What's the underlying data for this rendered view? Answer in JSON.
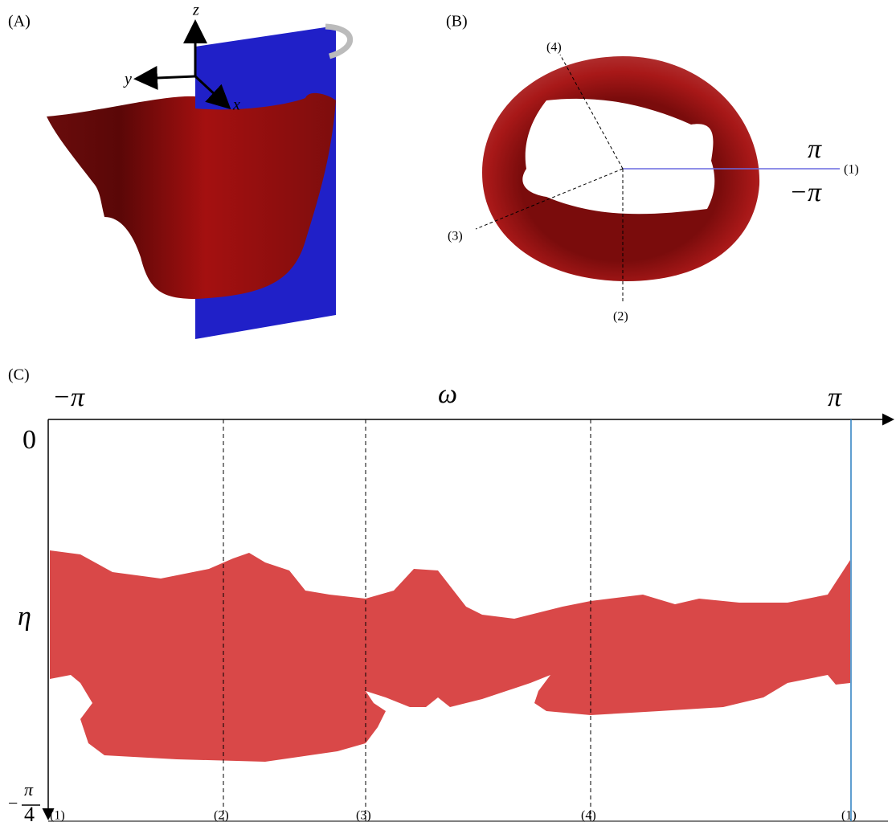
{
  "panels": {
    "a": {
      "label": "(A)",
      "axes": {
        "z": "z",
        "y": "y",
        "x": "x"
      }
    },
    "b": {
      "label": "(B)",
      "angle_top": "π",
      "angle_bottom": "−π",
      "lines": [
        "(1)",
        "(2)",
        "(3)",
        "(4)"
      ]
    },
    "c": {
      "label": "(C)",
      "x_start": "−π",
      "x_end": "π",
      "x_axis": "ω",
      "y_top": "0",
      "y_axis": "η",
      "y_bottom": {
        "sign": "−",
        "numerator": "π",
        "denominator": "4"
      },
      "markers": [
        "(1)",
        "(2)",
        "(3)",
        "(4)",
        "(1)"
      ]
    }
  }
}
